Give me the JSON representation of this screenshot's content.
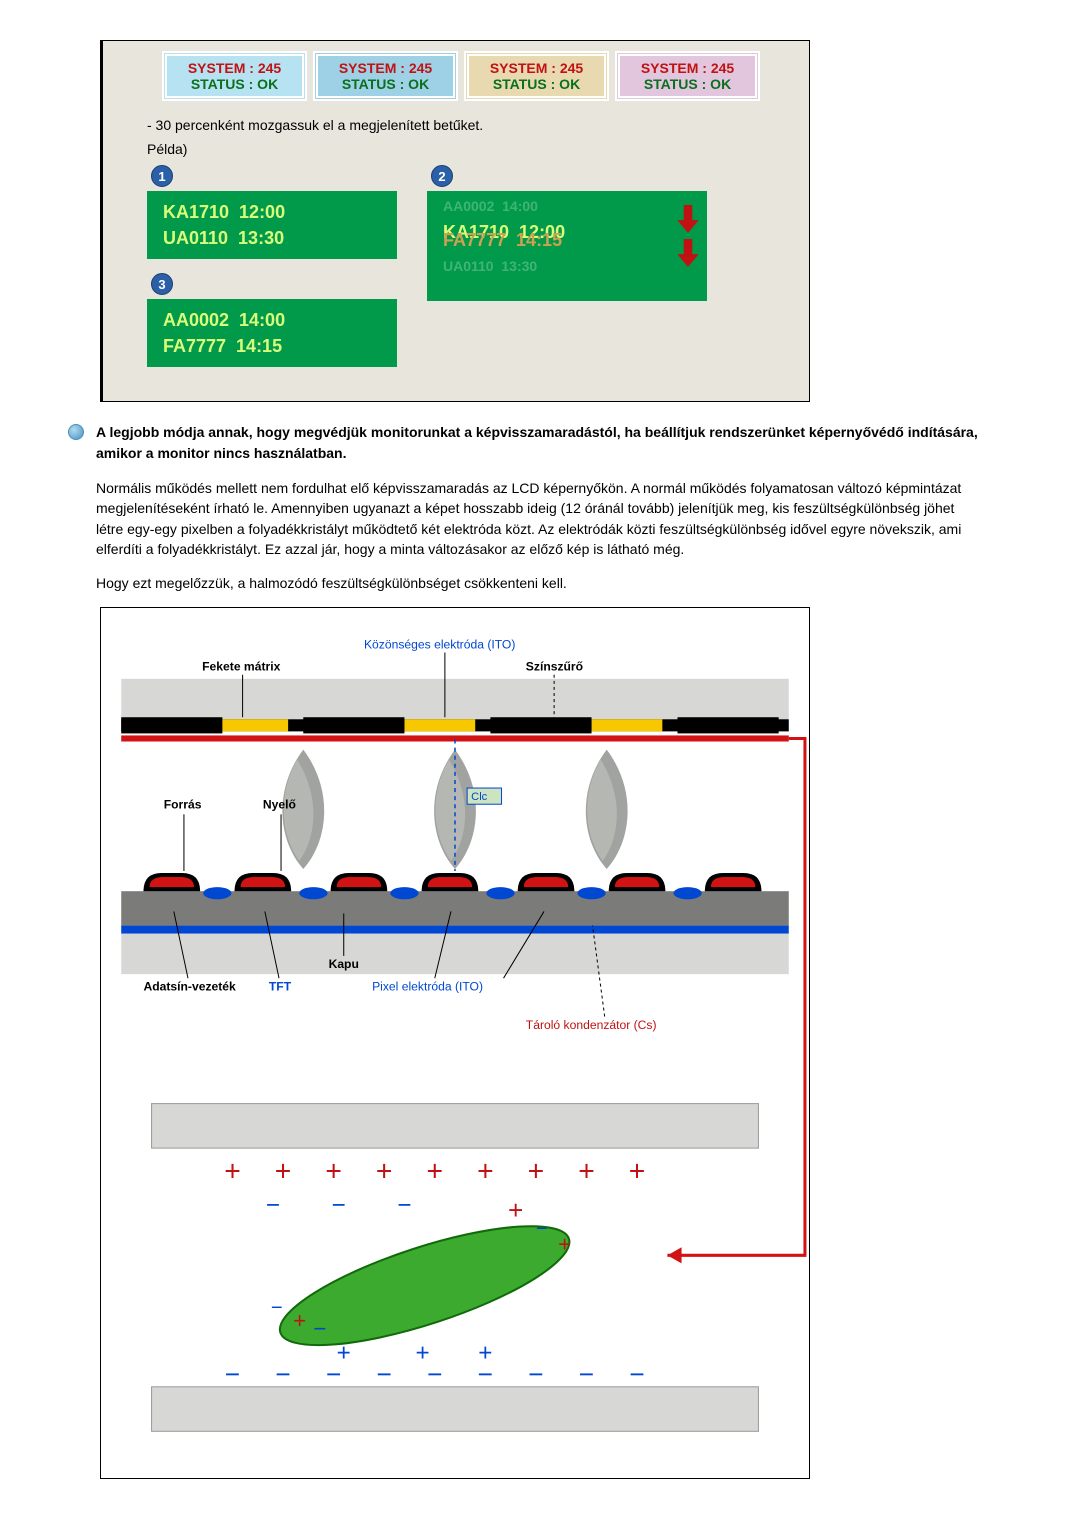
{
  "figure1": {
    "status_boxes": [
      {
        "system": "SYSTEM : 245",
        "status": "STATUS : OK",
        "bg": "#b7e2f2",
        "sys_color": "#c01212",
        "stat_color": "#0a6f1e"
      },
      {
        "system": "SYSTEM : 245",
        "status": "STATUS : OK",
        "bg": "#9ed1e5",
        "sys_color": "#c01212",
        "stat_color": "#0a6f1e"
      },
      {
        "system": "SYSTEM : 245",
        "status": "STATUS : OK",
        "bg": "#e8d9b1",
        "sys_color": "#c01212",
        "stat_color": "#0a6f1e"
      },
      {
        "system": "SYSTEM : 245",
        "status": "STATUS : OK",
        "bg": "#e2c6dd",
        "sys_color": "#c01212",
        "stat_color": "#0a6f1e"
      }
    ],
    "caption_line1": "- 30 percenként mozgassuk el a megjelenített betűket.",
    "caption_line2": "Példa)",
    "panel1": {
      "badge": "1",
      "rows": [
        "KA1710  12:00",
        "UA0110  13:30"
      ]
    },
    "panel2": {
      "badge": "2",
      "rows_dim_top": "AA0002  14:00",
      "rows_mid": "KA1710  12:00",
      "rows_overlay": "FA7777  14:15",
      "rows_dim_bot": "UA0110  13:30",
      "arrow_color": "#c01212"
    },
    "panel3": {
      "badge": "3",
      "rows": [
        "AA0002  14:00",
        "FA7777  14:15"
      ]
    }
  },
  "section": {
    "bullet_bold": "A legjobb módja annak, hogy megvédjük monitorunkat a képvisszamaradástól, ha beállítjuk rendszerünket képernyővédő indítására, amikor a monitor nincs használatban.",
    "para1": "Normális működés mellett nem fordulhat elő képvisszamaradás az LCD képernyőkön. A normál működés folyamatosan változó képmintázat megjelenítéseként írható le. Amennyiben ugyanazt a képet hosszabb ideig (12 óránál tovább) jelenítjük meg, kis feszültségkülönbség jöhet létre egy-egy pixelben a folyadékkristályt működtető két elektróda közt. Az elektródák közti feszültségkülönbség idővel egyre növekszik, ami elferdíti a folyadékkristályt. Ez azzal jár, hogy a minta változásakor az előző kép is látható még.",
    "para2": "Hogy ezt megelőzzük, a halmozódó feszültségkülönbséget csökkenteni kell."
  },
  "figure2": {
    "labels": {
      "common_electrode": "Közönséges elektróda (ITO)",
      "black_matrix": "Fekete mátrix",
      "color_filter": "Színszűrő",
      "source": "Forrás",
      "drain": "Nyelő",
      "clc": "Clc",
      "gate": "Kapu",
      "data_line": "Adatsín-vezeték",
      "tft": "TFT",
      "pixel_electrode": "Pixel elektróda (ITO)",
      "storage_cap": "Tároló kondenzátor (Cs)"
    },
    "colors": {
      "bg": "#ffffff",
      "light_gray": "#d7d8d6",
      "dark_gray": "#7b7c7a",
      "black": "#000000",
      "yellow": "#f7c800",
      "red": "#d21313",
      "blue": "#0047d2",
      "green": "#3caa2e",
      "label_blue": "#0047d2",
      "label_red": "#c01212",
      "label_text": "#000000",
      "plus": "#c01212",
      "minus": "#0047d2",
      "font": 12
    }
  }
}
